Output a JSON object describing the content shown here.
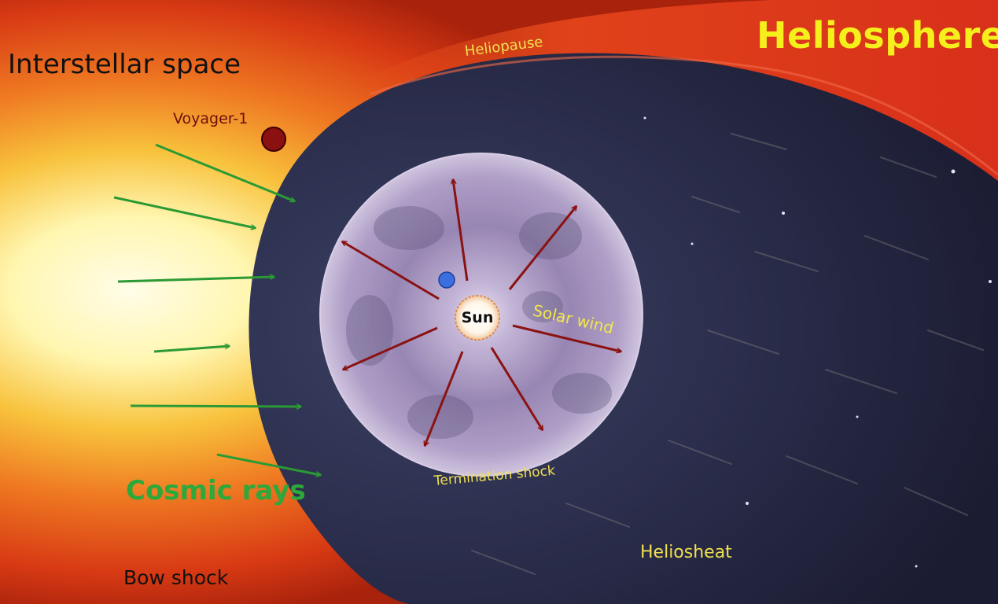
{
  "title": "Heliosphere",
  "labels": {
    "interstellar_space": "Interstellar space",
    "voyager": "Voyager-1",
    "heliopause": "Heliopause",
    "sun": "Sun",
    "solar_wind": "Solar wind",
    "termination_shock": "Termination shock",
    "heliosheat": "Heliosheat",
    "cosmic_rays": "Cosmic rays",
    "bow_shock": "Bow shock"
  },
  "colors": {
    "title": "#f5f01c",
    "cosmic_rays": "#2ea83a",
    "solar_wind_arrows": "#8b1212",
    "voyager_marker": "#8b1010",
    "earth_marker": "#3b6fe0",
    "interstellar_glow": "#fff6b0",
    "heliopause_band": "#e0401c",
    "heliosphere_body": "#2a2d4a",
    "termination_bubble": "#b9a6cf"
  }
}
